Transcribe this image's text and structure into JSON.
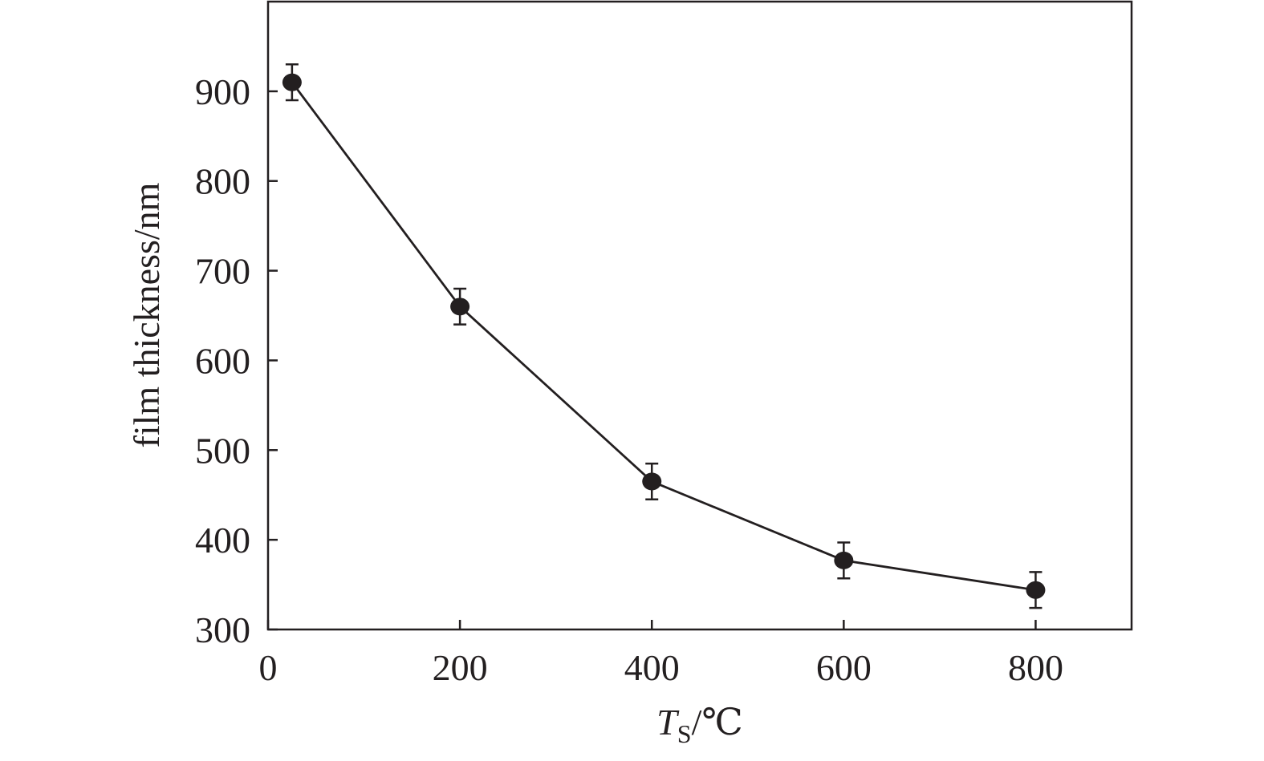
{
  "chart_data": {
    "type": "line",
    "xlabel": {
      "symbol": "T",
      "subscript": "S",
      "unit": "/℃"
    },
    "ylabel": "film thickness/nm",
    "xlim": [
      0,
      900
    ],
    "ylim": [
      300,
      1000
    ],
    "xticks": [
      0,
      200,
      400,
      600,
      800
    ],
    "yticks": [
      300,
      400,
      500,
      600,
      700,
      800,
      900
    ],
    "grid": false,
    "series": [
      {
        "x": [
          25,
          200,
          400,
          600,
          800
        ],
        "y": [
          910,
          660,
          465,
          377,
          344
        ],
        "error": [
          20,
          20,
          20,
          20,
          20
        ]
      }
    ],
    "colors": {
      "line": "#231f20",
      "marker": "#231f20",
      "axis": "#231f20"
    }
  }
}
